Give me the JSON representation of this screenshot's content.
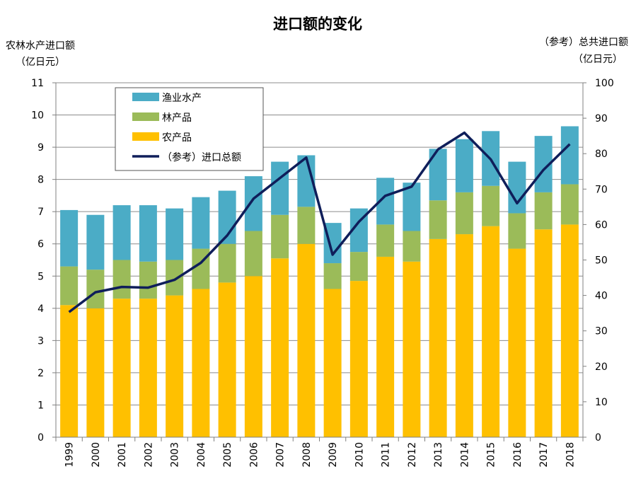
{
  "chart_data": {
    "type": "bar",
    "title": "进口额的变化",
    "left_axis": {
      "label_line1": "农林水产进口额",
      "label_line2": "（亿日元）",
      "ylim": [
        0,
        11
      ],
      "ticks": [
        0,
        1,
        2,
        3,
        4,
        5,
        6,
        7,
        8,
        9,
        10,
        11
      ]
    },
    "right_axis": {
      "label_line1": "（参考）总共进口额",
      "label_line2": "（亿日元）",
      "ylim": [
        0,
        100
      ],
      "ticks": [
        0,
        10,
        20,
        30,
        40,
        50,
        60,
        70,
        80,
        90,
        100
      ]
    },
    "categories": [
      "1999",
      "2000",
      "2001",
      "2002",
      "2003",
      "2004",
      "2005",
      "2006",
      "2007",
      "2008",
      "2009",
      "2010",
      "2011",
      "2012",
      "2013",
      "2014",
      "2015",
      "2016",
      "2017",
      "2018"
    ],
    "series": [
      {
        "name": "农产品",
        "color": "#FFC000",
        "stack": true,
        "values": [
          4.1,
          4.0,
          4.3,
          4.3,
          4.4,
          4.6,
          4.8,
          5.0,
          5.55,
          6.0,
          4.6,
          4.85,
          5.6,
          5.45,
          6.15,
          6.3,
          6.55,
          5.85,
          6.45,
          6.6
        ]
      },
      {
        "name": "林产品",
        "color": "#9BBB59",
        "stack": true,
        "values": [
          1.2,
          1.2,
          1.2,
          1.15,
          1.1,
          1.25,
          1.2,
          1.4,
          1.35,
          1.15,
          0.8,
          0.9,
          1.0,
          0.95,
          1.2,
          1.3,
          1.25,
          1.1,
          1.15,
          1.25
        ]
      },
      {
        "name": "渔业水产",
        "color": "#4BACC6",
        "stack": true,
        "values": [
          1.75,
          1.7,
          1.7,
          1.75,
          1.6,
          1.6,
          1.65,
          1.7,
          1.65,
          1.6,
          1.25,
          1.35,
          1.45,
          1.5,
          1.6,
          1.65,
          1.7,
          1.6,
          1.75,
          1.8
        ]
      },
      {
        "name": "（参考）进口总额",
        "color": "#0F1E5A",
        "type": "line",
        "axis": "right",
        "values": [
          35.3,
          40.9,
          42.4,
          42.2,
          44.4,
          49.2,
          56.9,
          67.3,
          73.1,
          78.9,
          51.5,
          60.8,
          68.1,
          70.7,
          81.2,
          85.9,
          78.4,
          66.0,
          75.4,
          82.7
        ]
      }
    ],
    "legend": {
      "position": "top-left",
      "order": [
        "渔业水产",
        "林产品",
        "农产品",
        "（参考）进口总额"
      ]
    },
    "grid": true
  }
}
